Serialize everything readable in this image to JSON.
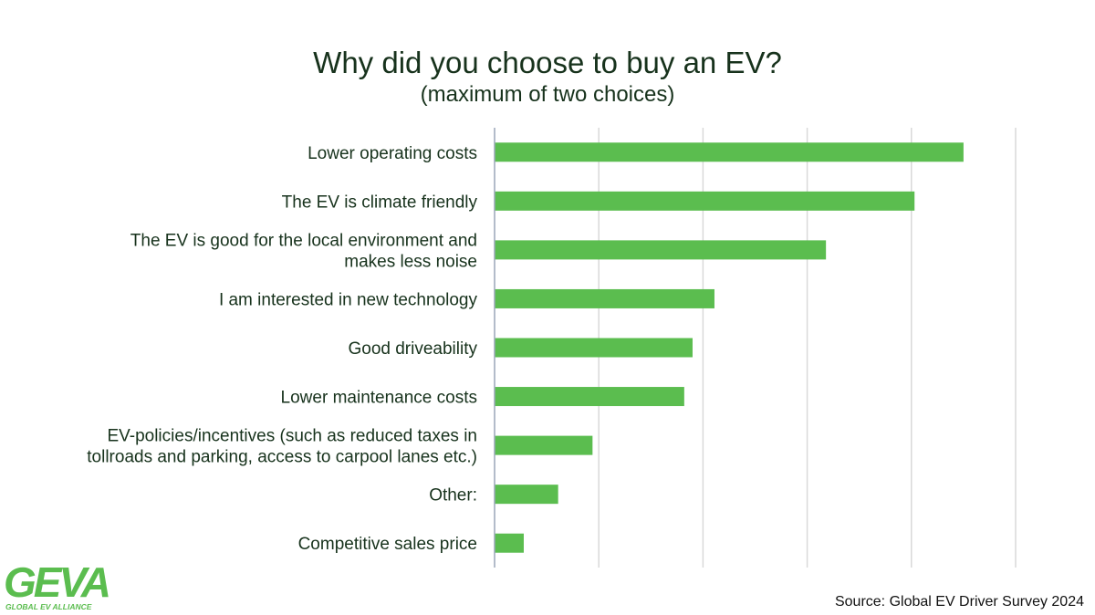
{
  "title": "Why did you choose to buy an EV?",
  "subtitle": "(maximum of two choices)",
  "source": "Source: Global EV Driver Survey 2024",
  "logo": {
    "text": "GEVA",
    "tagline": "GLOBAL EV ALLIANCE"
  },
  "colors": {
    "bar": "#5bbd4f",
    "title": "#17321c",
    "grid": "#d9d9d9",
    "logo": "#5bbd4f"
  },
  "chart_data": {
    "type": "bar",
    "orientation": "horizontal",
    "categories": [
      [
        "Lower operating costs"
      ],
      [
        "The EV is climate friendly"
      ],
      [
        "The EV is good for the local environment and",
        "makes less noise"
      ],
      [
        "I am interested in new technology"
      ],
      [
        "Good driveability"
      ],
      [
        "Lower maintenance costs"
      ],
      [
        "EV-policies/incentives (such as reduced taxes in",
        "tollroads and parking, access to carpool lanes etc.)"
      ],
      [
        "Other:"
      ],
      [
        "Competitive sales price"
      ]
    ],
    "values": [
      45,
      40.3,
      31.8,
      21.1,
      19,
      18.2,
      9.4,
      6.1,
      2.8
    ],
    "xlim": [
      0,
      50
    ],
    "grid": true
  }
}
